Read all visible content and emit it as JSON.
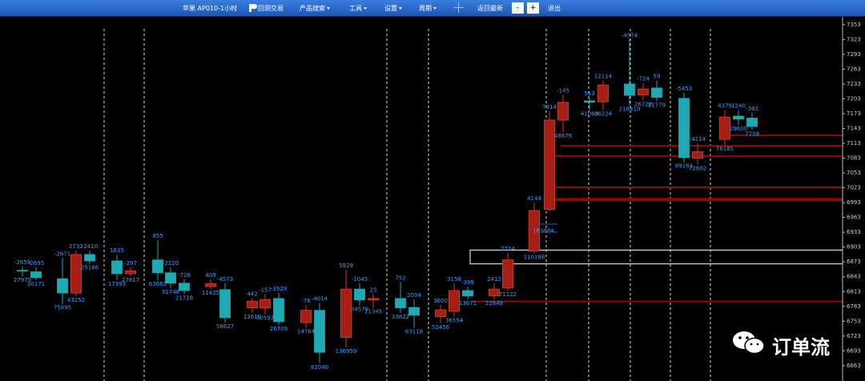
{
  "toolbar": {
    "symbol": "苹果 AP010-1小时",
    "logo": "回测交易",
    "menus": [
      "产品搜索",
      "工具",
      "设置",
      "周期"
    ],
    "back": "返回最新",
    "minus": "-",
    "plus": "+",
    "exit": "退出"
  },
  "watermark": "订单流",
  "chart_data": {
    "type": "candlestick",
    "ylim": [
      6632,
      7403
    ],
    "yticks": [
      7353,
      7323,
      7293,
      7263,
      7233,
      7203,
      7173,
      7143,
      7113,
      7083,
      7053,
      7023,
      6993,
      6963,
      6933,
      6903,
      6873,
      6843,
      6813,
      6783,
      6753,
      6723,
      6693,
      6663
    ],
    "up_color": "#a51f17",
    "down_color": "#1fa9b3",
    "label_color": "#3b9cff",
    "open": [
      6856,
      6853,
      6839,
      6810,
      6888,
      6875,
      6849,
      6877,
      6851,
      6830,
      6823,
      6817,
      6780,
      6780,
      6799,
      6750,
      6775,
      6720,
      6818,
      6796,
      6799,
      6781,
      6762,
      6773,
      6815,
      6804,
      6820,
      6895,
      6979,
      7160,
      7199,
      7197,
      7233,
      7211,
      7225,
      7204,
      7083,
      7121,
      7168,
      7164
    ],
    "high": [
      6864,
      6862,
      6881,
      6896,
      6896,
      6888,
      6862,
      6917,
      6862,
      6838,
      6838,
      6830,
      6800,
      6808,
      6810,
      6786,
      6790,
      6857,
      6830,
      6808,
      6832,
      6797,
      6786,
      6830,
      6823,
      6830,
      6891,
      6993,
      7178,
      7211,
      7205,
      7240,
      7323,
      7235,
      7240,
      7215,
      7113,
      7180,
      7180,
      7175
    ],
    "low": [
      6844,
      6836,
      6788,
      6804,
      6869,
      6836,
      6844,
      6836,
      6820,
      6808,
      6818,
      6750,
      6770,
      6767,
      6745,
      6740,
      6668,
      6700,
      6785,
      6780,
      6770,
      6740,
      6749,
      6762,
      6797,
      6797,
      6815,
      6890,
      6975,
      7136,
      7180,
      7180,
      7190,
      7200,
      7198,
      7075,
      7070,
      7110,
      7150,
      7140
    ],
    "close": [
      6855,
      6841,
      6810,
      6888,
      6875,
      6849,
      6855,
      6851,
      6830,
      6815,
      6829,
      6760,
      6793,
      6797,
      6752,
      6775,
      6690,
      6818,
      6796,
      6799,
      6780,
      6765,
      6776,
      6815,
      6804,
      6818,
      6877,
      6977,
      7160,
      7196,
      7196,
      7231,
      7210,
      7223,
      7206,
      7084,
      7096,
      7166,
      7162,
      7147
    ],
    "labels_above": [
      "-2659",
      "-2695",
      "-2671",
      "2732",
      "-2410",
      "1835",
      "-297",
      "855",
      "-2220",
      "-728",
      "409",
      "-4573",
      "442",
      "-157",
      "-3929",
      "-76",
      "-4014",
      "5929",
      "-1045",
      "25",
      "752",
      "2004",
      "3600",
      "3158",
      "-399",
      "2412",
      "2714",
      "4144",
      "7914",
      "-145",
      "513",
      "12114",
      "-4574",
      "-724",
      "59",
      "-5453",
      "-4114",
      "4379",
      "1240",
      "-383"
    ],
    "labels_below": [
      "27975",
      "30171",
      "75895",
      "43252",
      "25186",
      "17393",
      "27817",
      "63661",
      "31748",
      "21718",
      "11425",
      "58627",
      "13610",
      "30597",
      "26709",
      "14764",
      "82040",
      "136959",
      "34579",
      "11345",
      "33822",
      "63118",
      "52456",
      "36554",
      "13671",
      "22849",
      "71122",
      "110188",
      null,
      "48879",
      "41063",
      "86224",
      "218410",
      "26720",
      "21779",
      "69183",
      "72602",
      "76185",
      "29600",
      "7759"
    ],
    "labels_side": [
      null,
      null,
      null,
      null,
      null,
      null,
      null,
      null,
      null,
      null,
      null,
      null,
      null,
      null,
      null,
      null,
      null,
      null,
      null,
      null,
      null,
      null,
      null,
      null,
      null,
      null,
      null,
      "163884",
      null,
      null,
      null,
      null,
      null,
      null,
      null,
      null,
      null,
      null,
      null,
      null
    ],
    "levels": [
      7129,
      7108,
      7087,
      7024,
      6999,
      6793
    ],
    "level_color": "#8a0c0c",
    "zone": [
      6869,
      6897
    ]
  }
}
